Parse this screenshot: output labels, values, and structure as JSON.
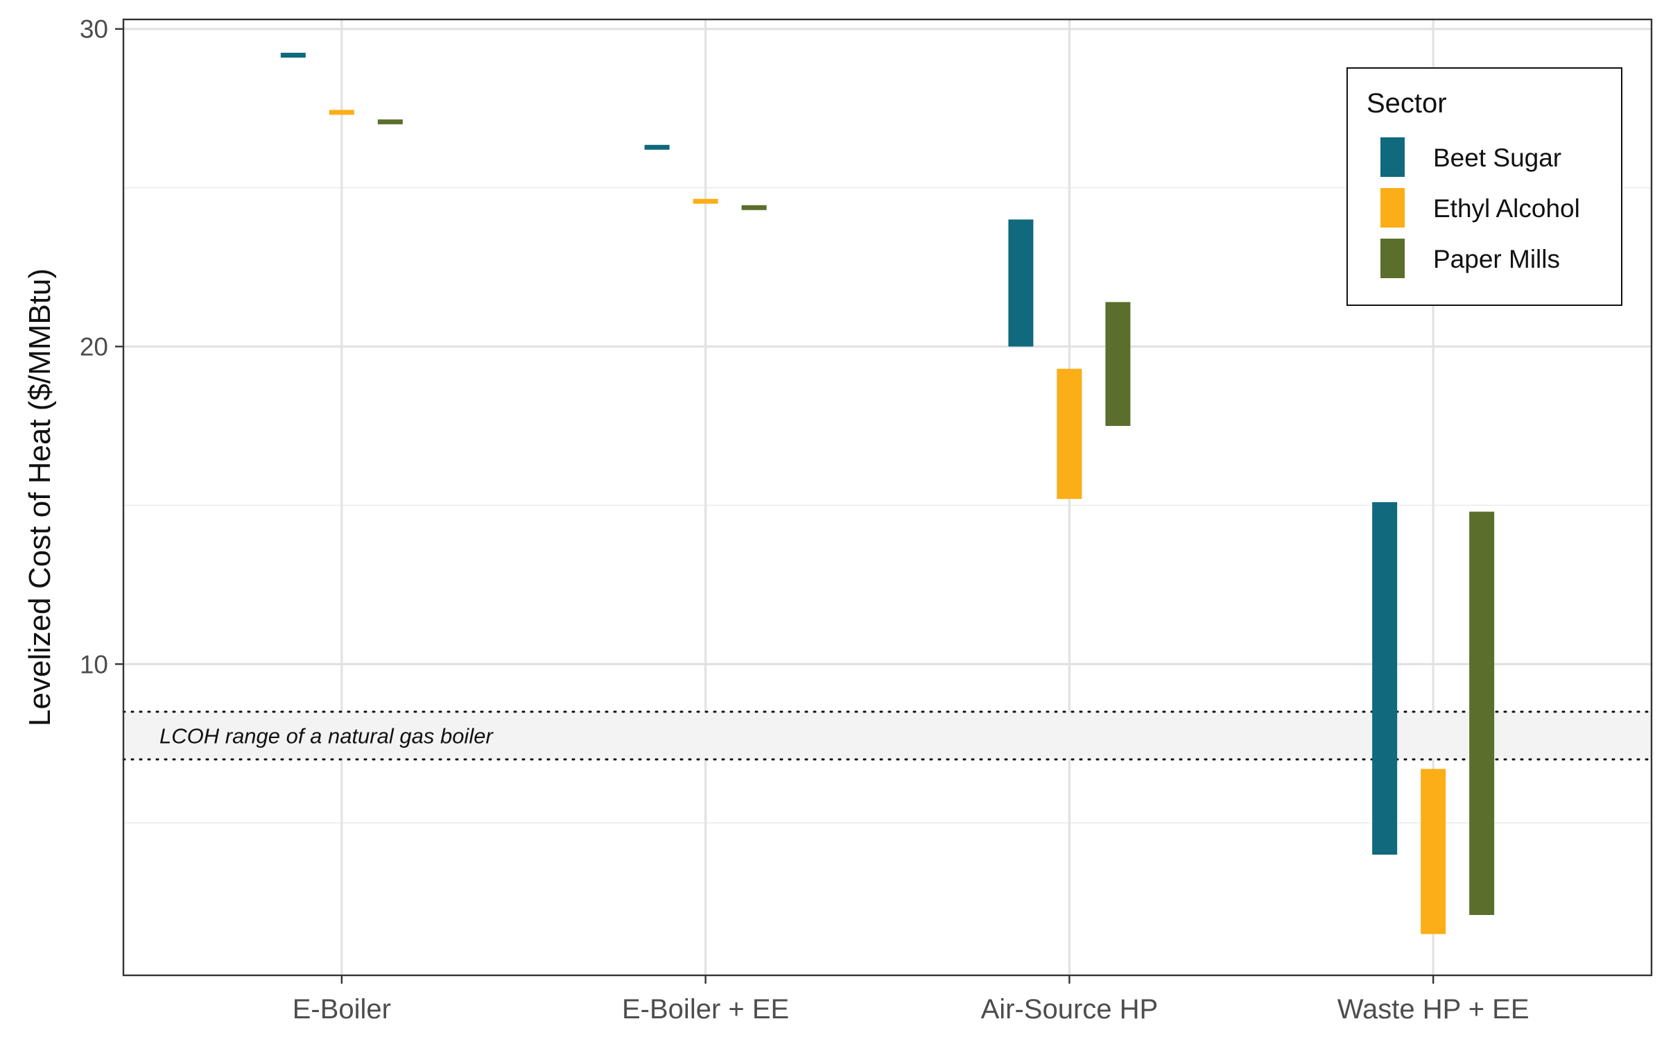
{
  "chart_data": {
    "type": "range_bar",
    "title": "",
    "xlabel": "",
    "ylabel": "Levelized Cost of Heat ($/MMBtu)",
    "ylim": [
      0.2,
      30.3
    ],
    "yticks": [
      10,
      20,
      30
    ],
    "grid": true,
    "categories": [
      "E-Boiler",
      "E-Boiler + EE",
      "Air-Source HP",
      "Waste HP + EE"
    ],
    "legend": {
      "title": "Sector",
      "position": "top-right"
    },
    "series": [
      {
        "name": "Beet Sugar",
        "color": "#10697C",
        "ranges": [
          [
            29.15,
            29.25
          ],
          [
            26.25,
            26.35
          ],
          [
            20.0,
            24.0
          ],
          [
            4.0,
            15.1
          ]
        ]
      },
      {
        "name": "Ethyl Alcohol",
        "color": "#FBAE17",
        "ranges": [
          [
            27.35,
            27.45
          ],
          [
            24.55,
            24.65
          ],
          [
            15.2,
            19.3
          ],
          [
            1.5,
            6.7
          ]
        ]
      },
      {
        "name": "Paper Mills",
        "color": "#5B6E2B",
        "ranges": [
          [
            27.05,
            27.15
          ],
          [
            24.35,
            24.45
          ],
          [
            17.5,
            21.4
          ],
          [
            2.1,
            14.8
          ]
        ]
      }
    ],
    "annotation": {
      "label": "LCOH range of a natural gas boiler",
      "range": [
        7.0,
        8.5
      ]
    }
  }
}
